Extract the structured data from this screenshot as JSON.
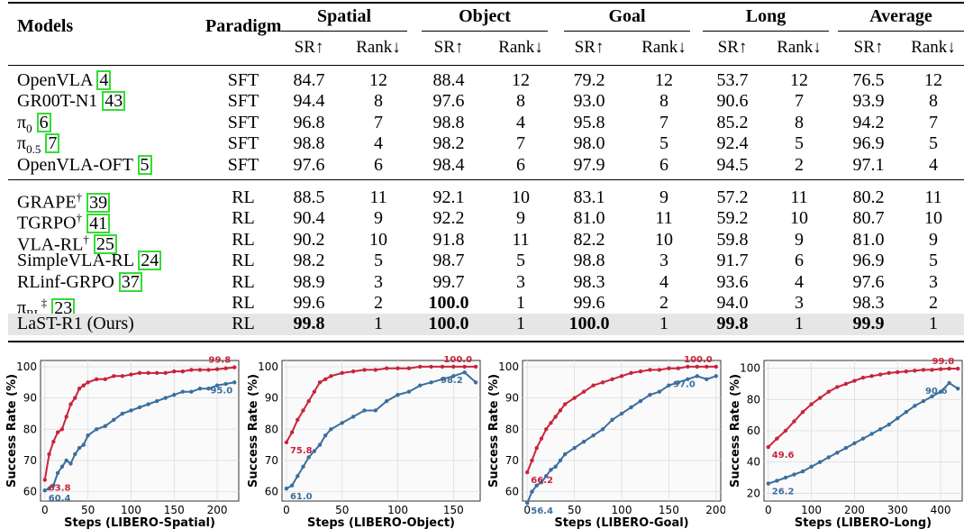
{
  "table": {
    "col_models": "Models",
    "col_paradigm": "Paradigm",
    "groups": [
      "Spatial",
      "Object",
      "Goal",
      "Long",
      "Average"
    ],
    "sub_sr": "SR↑",
    "sub_rank": "Rank↓",
    "sections": [
      [
        {
          "name": "OpenVLA ",
          "ref": "4",
          "sup": "",
          "paradigm": "SFT",
          "vals": [
            "84.7",
            "12",
            "88.4",
            "12",
            "79.2",
            "12",
            "53.7",
            "12",
            "76.5",
            "12"
          ],
          "bold": []
        },
        {
          "name": "GR00T-N1 ",
          "ref": "43",
          "sup": "",
          "paradigm": "SFT",
          "vals": [
            "94.4",
            "8",
            "97.6",
            "8",
            "93.0",
            "8",
            "90.6",
            "7",
            "93.9",
            "8"
          ],
          "bold": []
        },
        {
          "name": "π",
          "sub": "0",
          "ref": "6",
          "sup": "",
          "paradigm": "SFT",
          "vals": [
            "96.8",
            "7",
            "98.8",
            "4",
            "95.8",
            "7",
            "85.2",
            "8",
            "94.2",
            "7"
          ],
          "bold": []
        },
        {
          "name": "π",
          "sub": "0.5",
          "ref": "7",
          "sup": "",
          "paradigm": "SFT",
          "vals": [
            "98.8",
            "4",
            "98.2",
            "7",
            "98.0",
            "5",
            "92.4",
            "5",
            "96.9",
            "5"
          ],
          "bold": []
        },
        {
          "name": "OpenVLA-OFT ",
          "ref": "5",
          "sup": "",
          "paradigm": "SFT",
          "vals": [
            "97.6",
            "6",
            "98.4",
            "6",
            "97.9",
            "6",
            "94.5",
            "2",
            "97.1",
            "4"
          ],
          "bold": []
        }
      ],
      [
        {
          "name": "GRAPE",
          "sup": "†",
          "ref": "39",
          "paradigm": "RL",
          "vals": [
            "88.5",
            "11",
            "92.1",
            "10",
            "83.1",
            "9",
            "57.2",
            "11",
            "80.2",
            "11"
          ],
          "bold": []
        },
        {
          "name": "TGRPO",
          "sup": "†",
          "ref": "41",
          "paradigm": "RL",
          "vals": [
            "90.4",
            "9",
            "92.2",
            "9",
            "81.0",
            "11",
            "59.2",
            "10",
            "80.7",
            "10"
          ],
          "bold": []
        },
        {
          "name": "VLA-RL",
          "sup": "†",
          "ref": "25",
          "paradigm": "RL",
          "vals": [
            "90.2",
            "10",
            "91.8",
            "11",
            "82.2",
            "10",
            "59.8",
            "9",
            "81.0",
            "9"
          ],
          "bold": []
        },
        {
          "name": "SimpleVLA-RL ",
          "sup": "",
          "ref": "24",
          "paradigm": "RL",
          "vals": [
            "98.2",
            "5",
            "98.7",
            "5",
            "98.8",
            "3",
            "91.7",
            "6",
            "96.9",
            "5"
          ],
          "bold": []
        },
        {
          "name": "RLinf-GRPO ",
          "sup": "",
          "ref": "37",
          "paradigm": "RL",
          "vals": [
            "98.9",
            "3",
            "99.7",
            "3",
            "98.3",
            "4",
            "93.6",
            "4",
            "97.6",
            "3"
          ],
          "bold": []
        },
        {
          "name": "π",
          "sub": "RL",
          "sup": "‡",
          "ref": "23",
          "paradigm": "RL",
          "vals": [
            "99.6",
            "2",
            "100.0",
            "1",
            "99.6",
            "2",
            "94.0",
            "3",
            "98.3",
            "2"
          ],
          "bold": [
            2
          ]
        },
        {
          "name": "LaST-R1 (Ours)",
          "sup": "",
          "ref": "",
          "paradigm": "RL",
          "vals": [
            "99.8",
            "1",
            "100.0",
            "1",
            "100.0",
            "1",
            "99.8",
            "1",
            "99.9",
            "1"
          ],
          "bold": [
            0,
            2,
            4,
            6,
            8
          ],
          "highlight": true
        }
      ]
    ]
  },
  "charts": [
    {
      "xlabel": "Steps (LIBERO-Spatial)",
      "ylabel": "Success Rate (%)",
      "xticks": [
        0,
        50,
        100,
        150,
        200
      ],
      "yticks": [
        60,
        70,
        80,
        90,
        100
      ],
      "xlim": [
        -5,
        225
      ],
      "ylim": [
        57,
        102
      ],
      "red": {
        "x": [
          0,
          5,
          10,
          15,
          20,
          25,
          30,
          35,
          40,
          45,
          50,
          60,
          70,
          80,
          90,
          100,
          110,
          120,
          130,
          140,
          150,
          160,
          170,
          180,
          190,
          200,
          210,
          220
        ],
        "y": [
          63.8,
          72,
          76,
          79,
          80,
          84,
          88,
          90,
          93,
          94,
          95,
          96,
          96,
          97,
          97,
          97.5,
          98,
          98,
          98,
          98,
          98.5,
          98.5,
          99,
          99,
          99,
          99.2,
          99.5,
          99.8
        ]
      },
      "blue": {
        "x": [
          0,
          5,
          10,
          15,
          20,
          25,
          30,
          35,
          40,
          45,
          50,
          60,
          70,
          80,
          90,
          100,
          110,
          120,
          130,
          140,
          150,
          160,
          170,
          180,
          190,
          200,
          210,
          220
        ],
        "y": [
          60.4,
          61,
          62,
          66,
          68,
          70,
          69,
          72,
          74,
          75,
          78,
          80,
          81,
          83,
          85,
          86,
          87,
          88,
          89,
          90,
          91,
          92,
          92,
          93,
          93,
          94,
          94.5,
          95.0
        ]
      },
      "red_start": "63.8",
      "red_end": "99.8",
      "blue_start": "60.4",
      "blue_end": "95.0"
    },
    {
      "xlabel": "Steps (LIBERO-Object)",
      "ylabel": "Success Rate (%)",
      "xticks": [
        0,
        50,
        100,
        150
      ],
      "yticks": [
        60,
        70,
        80,
        90,
        100
      ],
      "xlim": [
        -4,
        174
      ],
      "ylim": [
        57,
        102
      ],
      "red": {
        "x": [
          0,
          5,
          10,
          15,
          20,
          25,
          30,
          35,
          40,
          50,
          60,
          70,
          80,
          90,
          100,
          110,
          120,
          130,
          140,
          150,
          160,
          170
        ],
        "y": [
          75.8,
          79,
          83,
          86,
          89,
          92,
          95,
          96,
          97,
          98,
          98.5,
          99,
          99,
          99.5,
          99.5,
          99.5,
          100,
          100,
          100,
          100,
          100,
          100.0
        ]
      },
      "blue": {
        "x": [
          0,
          5,
          10,
          15,
          20,
          25,
          30,
          35,
          40,
          50,
          60,
          70,
          80,
          90,
          100,
          110,
          120,
          130,
          140,
          150,
          160,
          170
        ],
        "y": [
          61.0,
          62,
          65,
          68,
          71,
          73,
          75,
          78,
          80,
          82,
          84,
          86,
          86,
          89,
          91,
          92,
          94,
          95,
          96,
          97,
          98.2,
          95
        ]
      },
      "red_start": "75.8",
      "red_end": "100.0",
      "blue_start": "61.0",
      "blue_end": "98.2"
    },
    {
      "xlabel": "Steps (LIBERO-Goal)",
      "ylabel": "Success Rate (%)",
      "xticks": [
        0,
        50,
        100,
        150,
        200
      ],
      "yticks": [
        60,
        70,
        80,
        90,
        100
      ],
      "xlim": [
        -5,
        205
      ],
      "ylim": [
        57,
        102
      ],
      "red": {
        "x": [
          0,
          5,
          10,
          15,
          20,
          25,
          30,
          35,
          40,
          50,
          60,
          70,
          80,
          90,
          100,
          110,
          120,
          130,
          140,
          150,
          160,
          170,
          180,
          190,
          200
        ],
        "y": [
          66.2,
          70,
          74,
          77,
          80,
          82,
          84,
          86,
          88,
          90,
          92,
          94,
          95,
          96,
          97,
          98,
          98.5,
          99,
          99,
          99.5,
          99.5,
          100,
          100,
          100,
          100.0
        ]
      },
      "blue": {
        "x": [
          0,
          5,
          10,
          15,
          20,
          25,
          30,
          35,
          40,
          50,
          60,
          70,
          80,
          90,
          100,
          110,
          120,
          130,
          140,
          150,
          160,
          170,
          180,
          190,
          200
        ],
        "y": [
          56.4,
          60,
          62,
          63,
          65,
          67,
          68,
          70,
          72,
          74,
          76,
          78,
          80,
          83,
          85,
          87,
          89,
          91,
          92,
          94,
          95,
          96,
          97.0,
          96,
          97
        ]
      },
      "red_start": "66.2",
      "red_end": "100.0",
      "blue_start": "56.4",
      "blue_end": "97.0"
    },
    {
      "xlabel": "Steps (LIBERO-Long)",
      "ylabel": "Success Rate (%)",
      "xticks": [
        0,
        100,
        200,
        300,
        400
      ],
      "yticks": [
        20,
        40,
        60,
        80,
        100
      ],
      "xlim": [
        -10,
        450
      ],
      "ylim": [
        15,
        105
      ],
      "red": {
        "x": [
          0,
          20,
          40,
          60,
          80,
          100,
          120,
          140,
          160,
          180,
          200,
          220,
          240,
          260,
          280,
          300,
          320,
          340,
          360,
          380,
          400,
          420,
          440
        ],
        "y": [
          49.6,
          55,
          60,
          66,
          72,
          77,
          81,
          85,
          88,
          90,
          92,
          94,
          95,
          96,
          97,
          97.5,
          98,
          98.5,
          99,
          99,
          99.5,
          99.8,
          99.8
        ]
      },
      "blue": {
        "x": [
          0,
          20,
          40,
          60,
          80,
          100,
          120,
          140,
          160,
          180,
          200,
          220,
          240,
          260,
          280,
          300,
          320,
          340,
          360,
          380,
          400,
          420,
          440
        ],
        "y": [
          26.2,
          28,
          30,
          32,
          34,
          37,
          40,
          43,
          46,
          49,
          52,
          55,
          58,
          61,
          64,
          68,
          72,
          76,
          79,
          82,
          85,
          90.6,
          87
        ]
      },
      "red_start": "49.6",
      "red_end": "99.8",
      "blue_start": "26.2",
      "blue_end": "90.6"
    }
  ],
  "colors": {
    "red": "#c8243c",
    "blue": "#3a6e9e",
    "grid": "#dddddd"
  }
}
